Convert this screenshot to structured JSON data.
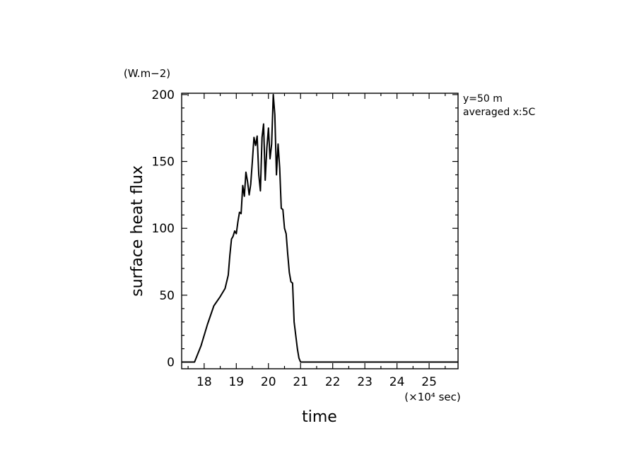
{
  "chart_data": {
    "type": "line",
    "xlabel": "time",
    "ylabel": "surface heat flux",
    "yunit": "(W.m−2)",
    "xunit": "(×10⁴ sec)",
    "annotations": [
      "y=50  m",
      "averaged   x:5C"
    ],
    "xlim": [
      17.3,
      25.9
    ],
    "ylim": [
      -5,
      201
    ],
    "xticks": [
      18,
      19,
      20,
      21,
      22,
      23,
      24,
      25
    ],
    "xtick_labels": [
      "18",
      "19",
      "20",
      "21",
      "22",
      "23",
      "24",
      "25"
    ],
    "yticks": [
      0,
      50,
      100,
      150,
      200
    ],
    "ytick_labels": [
      "0",
      "50",
      "100",
      "150",
      "200"
    ],
    "grid": false,
    "series": [
      {
        "color": "#000000",
        "x": [
          17.3,
          17.7,
          17.9,
          18.1,
          18.3,
          18.5,
          18.65,
          18.75,
          18.8,
          18.85,
          18.9,
          18.95,
          19.0,
          19.05,
          19.1,
          19.15,
          19.2,
          19.25,
          19.3,
          19.35,
          19.4,
          19.45,
          19.5,
          19.55,
          19.6,
          19.65,
          19.7,
          19.75,
          19.8,
          19.85,
          19.9,
          19.95,
          20.0,
          20.05,
          20.1,
          20.15,
          20.2,
          20.25,
          20.3,
          20.35,
          20.4,
          20.45,
          20.5,
          20.55,
          20.6,
          20.65,
          20.7,
          20.75,
          20.8,
          20.85,
          20.9,
          20.95,
          21.0,
          21.05,
          21.1,
          21.15,
          21.2,
          21.25,
          21.3,
          21.35,
          21.4,
          21.45,
          21.5,
          21.55,
          21.6,
          21.65,
          25.9
        ],
        "y": [
          0,
          0,
          12,
          28,
          42,
          49,
          55,
          65,
          80,
          92,
          94,
          98,
          96,
          105,
          112,
          111,
          132,
          124,
          142,
          135,
          125,
          133,
          150,
          168,
          162,
          169,
          140,
          128,
          168,
          178,
          136,
          160,
          175,
          152,
          163,
          200,
          185,
          140,
          163,
          145,
          115,
          114,
          100,
          96,
          81,
          67,
          60,
          59,
          30,
          20,
          10,
          3,
          0,
          0,
          0,
          0,
          0,
          0,
          0,
          0,
          0,
          0,
          0,
          0,
          0,
          0,
          0
        ]
      }
    ]
  }
}
